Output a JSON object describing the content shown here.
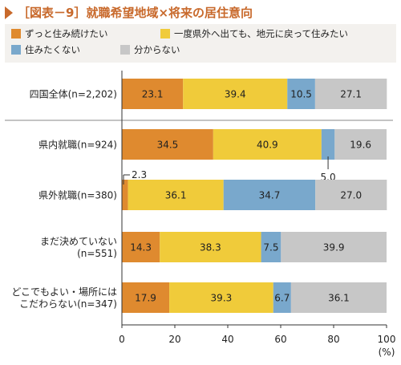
{
  "chart_data": {
    "type": "bar",
    "orientation": "horizontal",
    "stacked": true,
    "title": "［図表－9］就職希望地域×将来の居住意向",
    "xlabel": "",
    "xunit": "(%)",
    "xlim": [
      0,
      100
    ],
    "xticks": [
      0,
      20,
      40,
      60,
      80,
      100
    ],
    "legend_position": "top",
    "categories": [
      [
        "四国全体(n=2,202)"
      ],
      [
        "県内就職(n=924)"
      ],
      [
        "県外就職(n=380)"
      ],
      [
        "まだ決めていない",
        "(n=551)"
      ],
      [
        "どこでもよい・場所には",
        "こだわらない(n=347)"
      ]
    ],
    "series": [
      {
        "name": "ずっと住み続けたい",
        "color": "#df8a2f",
        "values": [
          23.1,
          34.5,
          2.3,
          14.3,
          17.9
        ],
        "labels": [
          "23.1",
          "34.5",
          "2.3",
          "14.3",
          "17.9"
        ]
      },
      {
        "name": "一度県外へ出ても、地元に戻って住みたい",
        "color": "#f0cb3a",
        "values": [
          39.4,
          40.9,
          36.1,
          38.3,
          39.3
        ],
        "labels": [
          "39.4",
          "40.9",
          "36.1",
          "38.3",
          "39.3"
        ]
      },
      {
        "name": "住みたくない",
        "color": "#79a8cc",
        "values": [
          10.5,
          5.0,
          34.7,
          7.5,
          6.7
        ],
        "labels": [
          "10.5",
          "5.0",
          "34.7",
          "7.5",
          "6.7"
        ]
      },
      {
        "name": "分からない",
        "color": "#c7c7c7",
        "values": [
          27.1,
          19.6,
          27.0,
          39.9,
          36.1
        ],
        "labels": [
          "27.1",
          "19.6",
          "27.0",
          "39.9",
          "36.1"
        ]
      }
    ]
  }
}
